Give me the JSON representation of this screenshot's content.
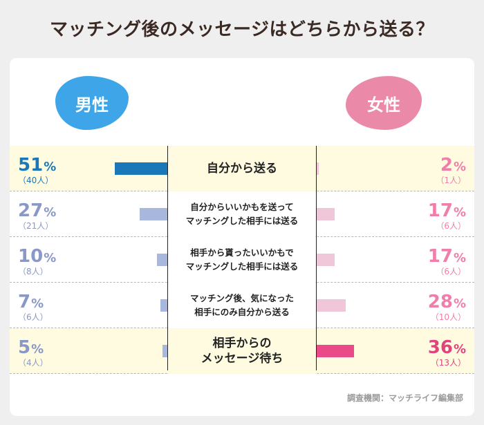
{
  "title": "マッチング後のメッセージはどちらから送る？",
  "source": "調査機関：マッチライフ編集部",
  "colors": {
    "male_accent": "#3ea6e8",
    "female_accent": "#ea8aa8",
    "male_highlight_bar": "#1a78b8",
    "male_bar": "#a7b7de",
    "female_highlight_bar": "#ea4a88",
    "female_bar": "#f0c7d8",
    "male_highlight_text": "#1a78b8",
    "male_text": "#8a98c6",
    "female_highlight_text": "#e2427d",
    "female_text": "#ef7eaa",
    "highlight_row": "#fffbe0"
  },
  "chart_data": {
    "type": "bar",
    "series": [
      {
        "name": "男性",
        "values": [
          51,
          27,
          10,
          7,
          5
        ],
        "value_labels": [
          "51",
          "27",
          "10",
          "7",
          "5"
        ],
        "counts": [
          "（40人）",
          "（21人）",
          "（8人）",
          "（6人）",
          "（4人）"
        ]
      },
      {
        "name": "女性",
        "values": [
          2,
          17,
          17,
          28,
          36
        ],
        "value_labels": [
          "2",
          "17",
          "17",
          "28",
          "36"
        ],
        "counts": [
          "（1人）",
          "（6人）",
          "（6人）",
          "（10人）",
          "（13人）"
        ]
      }
    ],
    "categories": [
      "自分から送る",
      "自分からいいかもを送って\nマッチングした相手には送る",
      "相手から貰ったいいかもで\nマッチングした相手には送る",
      "マッチング後、気になった\n相手にのみ自分から送る",
      "相手からの\nメッセージ待ち"
    ],
    "unit": "%",
    "xlim": [
      0,
      100
    ],
    "highlight": {
      "男性": 0,
      "女性": 4
    },
    "highlight_categories": [
      0,
      4
    ]
  }
}
